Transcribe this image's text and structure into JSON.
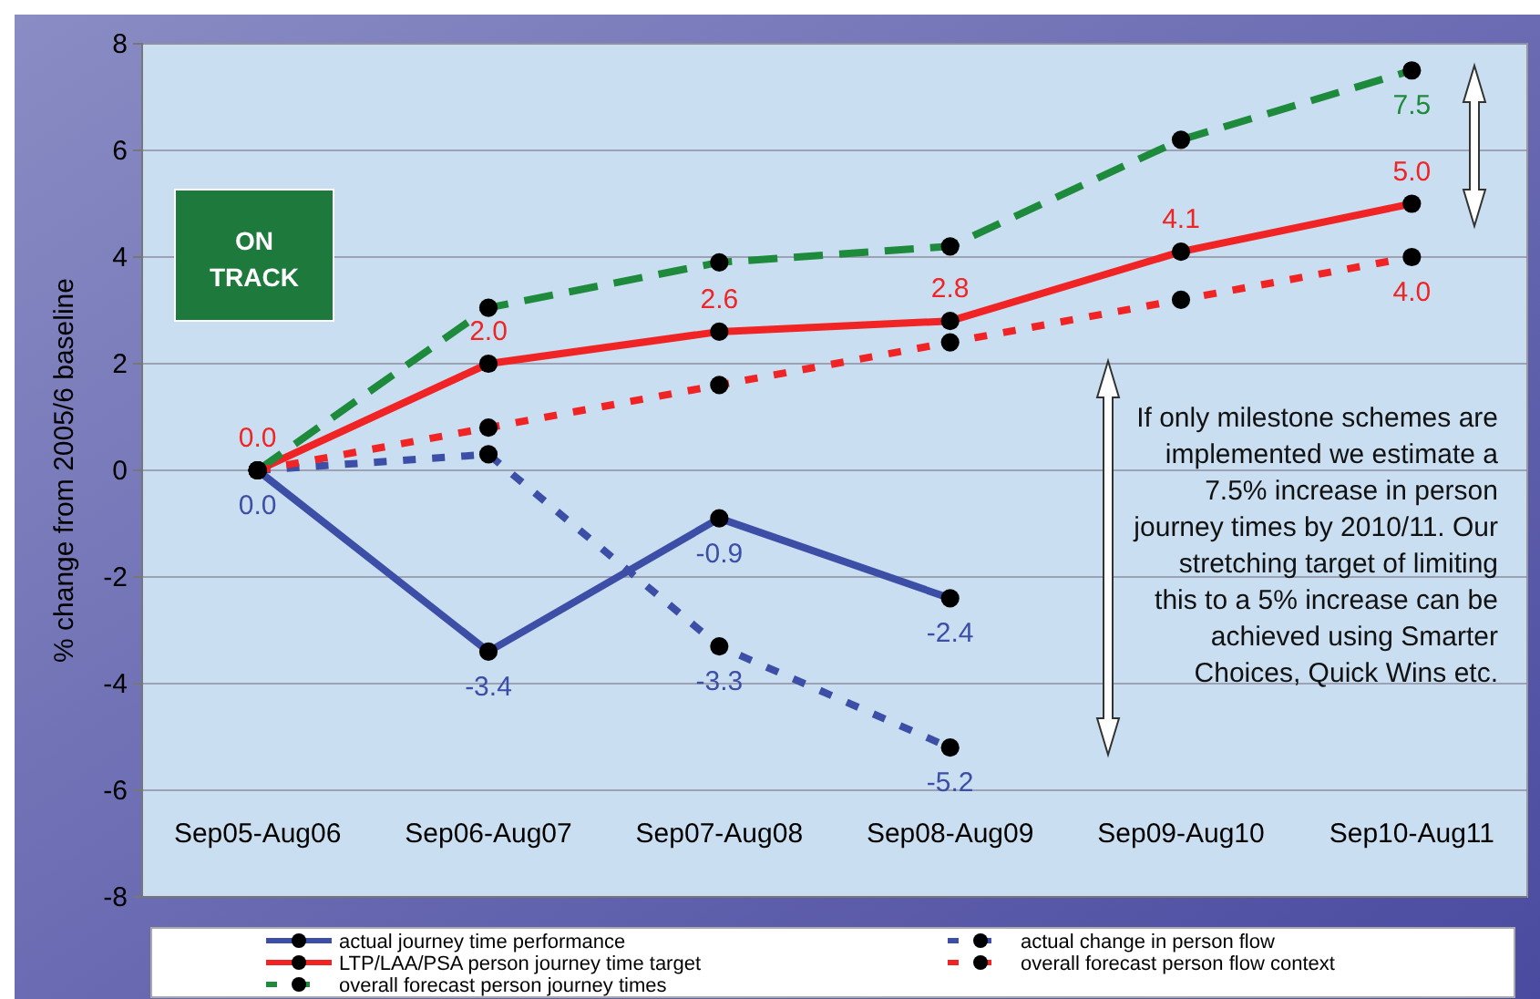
{
  "chart_data": {
    "type": "line",
    "ylabel": "% change from 2005/6 baseline",
    "categories": [
      "Sep05-Aug06",
      "Sep06-Aug07",
      "Sep07-Aug08",
      "Sep08-Aug09",
      "Sep09-Aug10",
      "Sep10-Aug11"
    ],
    "series": [
      {
        "name": "actual journey time performance",
        "color": "#3d4ea6",
        "line_style": "solid",
        "values": [
          0,
          -3.4,
          -0.9,
          -2.4,
          null,
          null
        ],
        "value_labels": [
          "0.0",
          "-3.4",
          "-0.9",
          "-2.4",
          null,
          null
        ]
      },
      {
        "name": "LTP/LAA/PSA person journey time target",
        "color": "#f02424",
        "line_style": "solid",
        "values": [
          0,
          2.0,
          2.6,
          2.8,
          4.1,
          5.0
        ],
        "value_labels": [
          "0.0",
          "2.0",
          "2.6",
          "2.8",
          "4.1",
          "5.0"
        ]
      },
      {
        "name": "overall forecast person journey times",
        "color": "#1e8a3c",
        "line_style": "dashed",
        "values": [
          0,
          3.05,
          3.9,
          4.2,
          6.2,
          7.5
        ],
        "value_labels": [
          null,
          null,
          null,
          null,
          null,
          "7.5"
        ]
      },
      {
        "name": "actual change in person flow",
        "color": "#3d4ea6",
        "line_style": "dotted",
        "values": [
          0,
          0.3,
          -3.3,
          -5.2,
          null,
          null
        ],
        "value_labels": [
          null,
          null,
          "-3.3",
          "-5.2",
          null,
          null
        ]
      },
      {
        "name": "overall forecast person flow context",
        "color": "#f02424",
        "line_style": "dotted",
        "values": [
          0,
          0.8,
          1.6,
          2.4,
          3.2,
          4.0
        ],
        "value_labels": [
          null,
          null,
          null,
          null,
          null,
          "4.0"
        ]
      }
    ],
    "ylim": [
      -8,
      8
    ],
    "yticks": [
      -8,
      -6,
      -4,
      -2,
      0,
      2,
      4,
      6,
      8
    ],
    "grid": "y",
    "marker": "circle",
    "legend": "bottom",
    "annotations": [
      "ON TRACK",
      "If only milestone schemes are implemented we estimate a 7.5% increase in person journey times by 2010/11.  Our stretching target of limiting this to a 5% increase can be achieved using Smarter Choices, Quick Wins etc."
    ]
  }
}
